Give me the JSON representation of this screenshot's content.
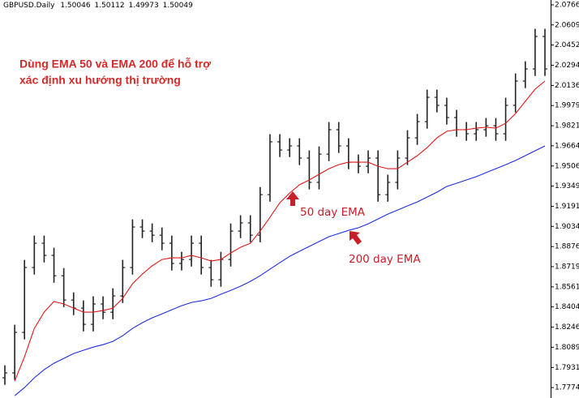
{
  "chart_data": {
    "type": "ohlc",
    "symbol": "GBPUSD.Daily",
    "quote": [
      1.50046,
      1.50112,
      1.49973,
      1.50049
    ],
    "annotations": [
      "Dùng EMA 50 và EMA 200 để hỗ trợ",
      "xác định xu hướng thị trường",
      "50 day EMA",
      "200 day EMA"
    ],
    "color": "#222222",
    "open": [
      1.785,
      1.7888,
      1.8205,
      1.8712,
      1.8902,
      1.8807,
      1.8648,
      1.8458,
      1.8395,
      1.8268,
      1.8427,
      1.8363,
      1.849,
      1.8712,
      1.9029,
      1.8997,
      1.8965,
      1.8902,
      1.8744,
      1.8775,
      1.8902,
      1.8712,
      1.8617,
      1.8775,
      1.8997,
      1.9061,
      1.8965,
      1.9282,
      1.9695,
      1.9631,
      1.9663,
      1.9568,
      1.9378,
      1.9599,
      1.979,
      1.9663,
      1.9536,
      1.9504,
      1.9568,
      1.9282,
      1.9378,
      1.9568,
      1.9726,
      1.9853,
      2.0043,
      1.998,
      1.9885,
      1.979,
      1.9758,
      1.979,
      1.9821,
      1.9758,
      1.998,
      2.017,
      2.0265,
      2.0519
    ],
    "high": [
      1.7948,
      1.8265,
      1.8772,
      1.8962,
      1.8962,
      1.8867,
      1.8708,
      1.8518,
      1.8455,
      1.8487,
      1.8487,
      1.855,
      1.8772,
      1.9089,
      1.9089,
      1.9057,
      1.9025,
      1.8962,
      1.8835,
      1.8962,
      1.8962,
      1.8772,
      1.8835,
      1.9057,
      1.9121,
      1.9121,
      1.9342,
      1.9755,
      1.9755,
      1.9723,
      1.9723,
      1.9628,
      1.9659,
      1.985,
      1.985,
      1.9723,
      1.9596,
      1.9628,
      1.9628,
      1.9438,
      1.9628,
      1.9786,
      1.9913,
      2.0103,
      2.0103,
      2.004,
      1.9945,
      1.985,
      1.985,
      1.9881,
      1.9881,
      2.004,
      2.023,
      2.0325,
      2.0579,
      2.0579
    ],
    "low": [
      1.7795,
      1.7833,
      1.815,
      1.8657,
      1.8752,
      1.8593,
      1.8403,
      1.834,
      1.8213,
      1.8213,
      1.8308,
      1.8308,
      1.8435,
      1.8657,
      1.8942,
      1.891,
      1.8847,
      1.8689,
      1.8689,
      1.872,
      1.8657,
      1.8562,
      1.8562,
      1.872,
      1.8942,
      1.891,
      1.891,
      1.9227,
      1.9576,
      1.9576,
      1.9513,
      1.9323,
      1.9323,
      1.9544,
      1.9608,
      1.9481,
      1.9449,
      1.9449,
      1.9227,
      1.9227,
      1.9323,
      1.9513,
      1.9671,
      1.9798,
      1.9925,
      1.983,
      1.9735,
      1.9703,
      1.9703,
      1.9735,
      1.9703,
      1.9703,
      1.9925,
      2.0115,
      2.021,
      2.021
    ],
    "close": [
      1.7888,
      1.8205,
      1.8712,
      1.8902,
      1.8807,
      1.8648,
      1.8458,
      1.8395,
      1.8268,
      1.8427,
      1.8363,
      1.849,
      1.8712,
      1.9029,
      1.8997,
      1.8965,
      1.8902,
      1.8744,
      1.8775,
      1.8902,
      1.8712,
      1.8617,
      1.8775,
      1.8997,
      1.9061,
      1.8965,
      1.9282,
      1.9695,
      1.9631,
      1.9663,
      1.9568,
      1.9378,
      1.9599,
      1.979,
      1.9663,
      1.9536,
      1.9504,
      1.9568,
      1.9282,
      1.9378,
      1.9568,
      1.9726,
      1.9853,
      2.0043,
      1.998,
      1.9885,
      1.979,
      1.9758,
      1.979,
      1.9821,
      1.9758,
      1.998,
      2.017,
      2.0265,
      2.0519,
      2.0265
    ],
    "series": [
      {
        "color": "#e01818",
        "values": [
          null,
          1.7824,
          1.8014,
          1.8236,
          1.8363,
          1.8446,
          1.8427,
          1.8395,
          1.8363,
          1.8363,
          1.8376,
          1.8395,
          1.8471,
          1.8585,
          1.8661,
          1.8725,
          1.8775,
          1.8788,
          1.8788,
          1.8807,
          1.8788,
          1.8763,
          1.8775,
          1.8826,
          1.887,
          1.8902,
          1.8997,
          1.9105,
          1.9219,
          1.9295,
          1.9359,
          1.9397,
          1.9441,
          1.9485,
          1.9517,
          1.9536,
          1.9536,
          1.9536,
          1.9504,
          1.9485,
          1.9485,
          1.9536,
          1.9587,
          1.965,
          1.9726,
          1.9777,
          1.979,
          1.979,
          1.9802,
          1.9809,
          1.9802,
          1.984,
          1.9916,
          2.0012,
          2.0107,
          2.017
        ]
      },
      {
        "color": "#1c2ee6",
        "values": [
          null,
          1.771,
          1.7774,
          1.785,
          1.7913,
          1.7964,
          1.8002,
          1.804,
          1.8065,
          1.809,
          1.8109,
          1.8135,
          1.8179,
          1.8236,
          1.8281,
          1.8319,
          1.835,
          1.8382,
          1.8414,
          1.8439,
          1.8452,
          1.8471,
          1.8503,
          1.8534,
          1.8566,
          1.8604,
          1.8648,
          1.8699,
          1.875,
          1.88,
          1.8839,
          1.8877,
          1.8915,
          1.8953,
          1.8978,
          1.9003,
          1.9023,
          1.9054,
          1.9092,
          1.913,
          1.9162,
          1.9194,
          1.9225,
          1.9263,
          1.9301,
          1.9346,
          1.9371,
          1.9397,
          1.9422,
          1.9454,
          1.9485,
          1.9517,
          1.9549,
          1.9587,
          1.9625,
          1.9663
        ]
      }
    ],
    "ylim": [
      1.7692,
      2.0804
    ],
    "yticks": [
      2.0766,
      2.0609,
      2.0452,
      2.0294,
      2.0136,
      1.9979,
      1.9821,
      1.9664,
      1.9506,
      1.9349,
      1.9191,
      1.9034,
      1.8876,
      1.8719,
      1.8561,
      1.8404,
      1.8246,
      1.8089,
      1.7931,
      1.7774
    ]
  }
}
